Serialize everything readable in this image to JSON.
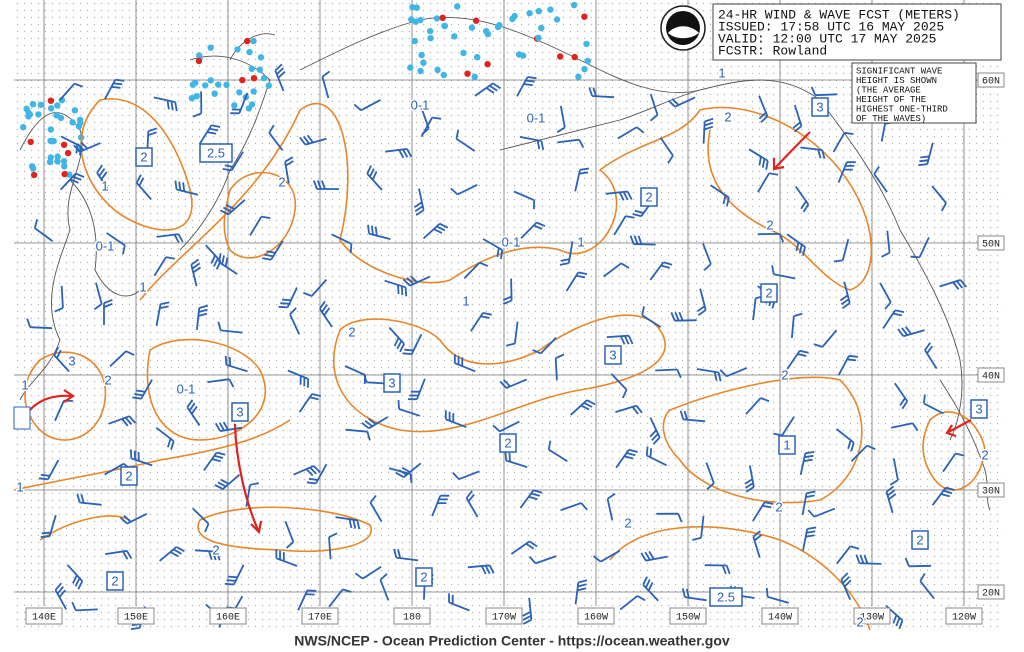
{
  "header": {
    "title": "24-HR WIND & WAVE FCST (METERS)",
    "issued": "ISSUED: 17:58 UTC 16 MAY 2025",
    "valid": "VALID:  12:00 UTC 17 MAY 2025",
    "forecaster": "FCSTR:  Rowland"
  },
  "note": [
    "SIGNIFICANT WAVE",
    "HEIGHT IS SHOWN",
    "(THE AVERAGE",
    "HEIGHT OF THE",
    "HIGHEST ONE-THIRD",
    "OF THE WAVES)"
  ],
  "longitude_labels": [
    "140E",
    "150E",
    "160E",
    "170E",
    "180",
    "170W",
    "160W",
    "150W",
    "140W",
    "130W",
    "120W"
  ],
  "latitude_labels": [
    "60N",
    "50N",
    "40N",
    "30N",
    "20N"
  ],
  "contour_labels": [
    "1",
    "0-1",
    "1",
    "2",
    "0-1",
    "0-1",
    "0-1",
    "1",
    "1",
    "2",
    "1",
    "2",
    "2",
    "3",
    "2",
    "1",
    "0-1",
    "1",
    "2",
    "2",
    "2",
    "2",
    "2",
    "2"
  ],
  "boxed_labels": [
    "2",
    "2.5",
    "2",
    "2",
    "3",
    "3",
    "3",
    "2",
    "1",
    "2",
    "3",
    "3",
    "2",
    "2",
    "2",
    "2.5"
  ],
  "footer": "NWS/NCEP - Ocean Prediction Center - https://ocean.weather.gov"
}
